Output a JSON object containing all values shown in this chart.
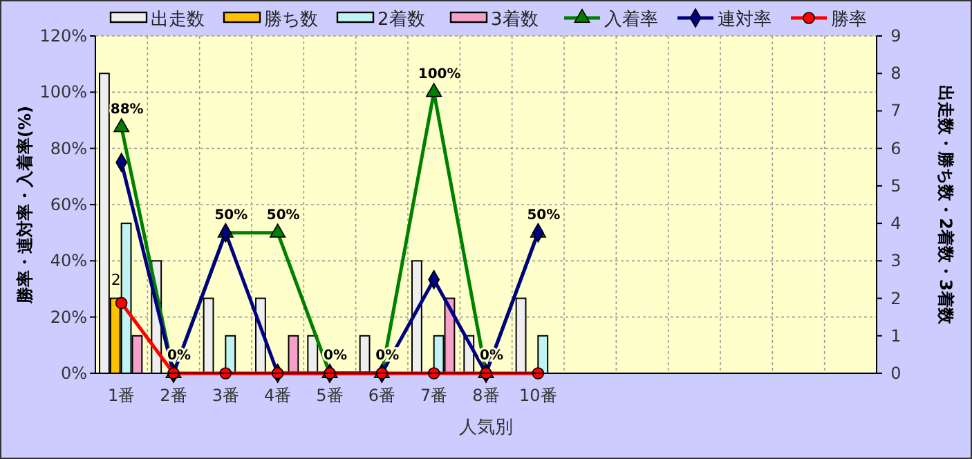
{
  "chart_data": {
    "type": "bar",
    "categories": [
      "1番",
      "2番",
      "3番",
      "4番",
      "5番",
      "6番",
      "7番",
      "8番",
      "10番",
      null,
      null,
      null,
      null,
      null,
      null
    ],
    "xlabel": "人気別",
    "ylabel": "勝率・連対率・入着率(%)",
    "y2label": "出走数・勝ち数・2着数・3着数",
    "ylim": [
      0,
      120
    ],
    "yticks": [
      {
        "value": 0,
        "label": "0%"
      },
      {
        "value": 20,
        "label": "20%"
      },
      {
        "value": 40,
        "label": "40%"
      },
      {
        "value": 60,
        "label": "60%"
      },
      {
        "value": 80,
        "label": "80%"
      },
      {
        "value": 100,
        "label": "100%"
      },
      {
        "value": 120,
        "label": "120%"
      }
    ],
    "y2lim": [
      0,
      9
    ],
    "y2ticks": [
      0,
      1,
      2,
      3,
      4,
      5,
      6,
      7,
      8,
      9
    ],
    "grid": true,
    "legend": "top",
    "series": [
      {
        "name": "出走数",
        "color": "#eeeeee",
        "axis": "y2",
        "values": [
          8,
          3,
          2,
          2,
          1,
          1,
          3,
          1,
          2,
          null,
          null,
          null,
          null,
          null,
          null
        ]
      },
      {
        "name": "勝ち数",
        "color": "#ffc000",
        "axis": "y2",
        "values": [
          2,
          0,
          0,
          0,
          0,
          0,
          0,
          0,
          0,
          null,
          null,
          null,
          null,
          null,
          null
        ],
        "value_labels": [
          "2",
          null,
          null,
          null,
          null,
          null,
          null,
          null,
          null,
          null,
          null,
          null,
          null,
          null,
          null
        ]
      },
      {
        "name": "2着数",
        "color": "#c0f4f4",
        "axis": "y2",
        "values": [
          4,
          0,
          1,
          0,
          0,
          0,
          1,
          0,
          1,
          null,
          null,
          null,
          null,
          null,
          null
        ]
      },
      {
        "name": "3着数",
        "color": "#f4a0c8",
        "axis": "y2",
        "values": [
          1,
          0,
          0,
          1,
          0,
          0,
          2,
          0,
          0,
          null,
          null,
          null,
          null,
          null,
          null
        ]
      },
      {
        "name": "入着率",
        "type": "line",
        "color": "#008000",
        "marker": "triangle",
        "values": [
          87.5,
          0,
          50,
          50,
          0,
          0,
          100,
          0,
          50,
          null,
          null,
          null,
          null,
          null,
          null
        ],
        "value_labels": [
          "88%",
          "0%",
          "50%",
          "50%",
          "0%",
          "0%",
          "100%",
          "0%",
          "50%",
          null,
          null,
          null,
          null,
          null,
          null
        ]
      },
      {
        "name": "連対率",
        "type": "line",
        "color": "#000080",
        "marker": "diamond",
        "values": [
          75,
          0,
          50,
          0,
          0,
          0,
          33.3,
          0,
          50,
          null,
          null,
          null,
          null,
          null,
          null
        ]
      },
      {
        "name": "勝率",
        "type": "line",
        "color": "#ff0000",
        "marker": "circle",
        "values": [
          25,
          0,
          0,
          0,
          0,
          0,
          0,
          0,
          0,
          null,
          null,
          null,
          null,
          null,
          null
        ]
      }
    ]
  }
}
